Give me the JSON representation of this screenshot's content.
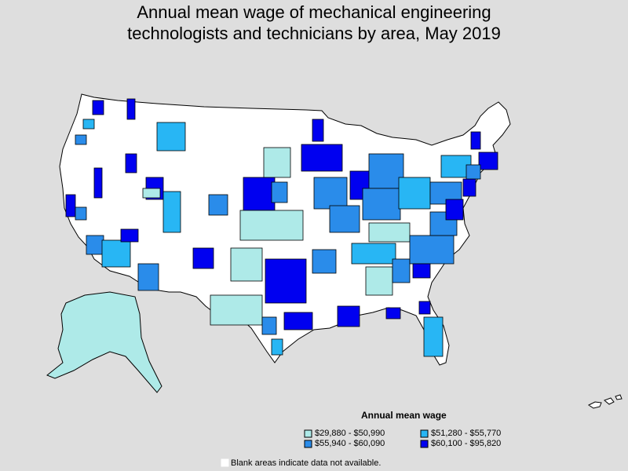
{
  "title_line1": "Annual mean wage of mechanical engineering",
  "title_line2": "technologists and technicians by area, May 2019",
  "legend": {
    "title": "Annual mean wage",
    "items": [
      {
        "label": "$29,880 - $50,990",
        "color": "#aeeae8"
      },
      {
        "label": "$51,280 - $55,770",
        "color": "#28b6f4"
      },
      {
        "label": "$55,940 - $60,090",
        "color": "#2a8cea"
      },
      {
        "label": "$60,100 - $95,820",
        "color": "#0000f0"
      }
    ]
  },
  "note": "Blank areas indicate data not available.",
  "colors": {
    "background": "#dedede",
    "blank": "#ffffff",
    "border": "#000000"
  }
}
